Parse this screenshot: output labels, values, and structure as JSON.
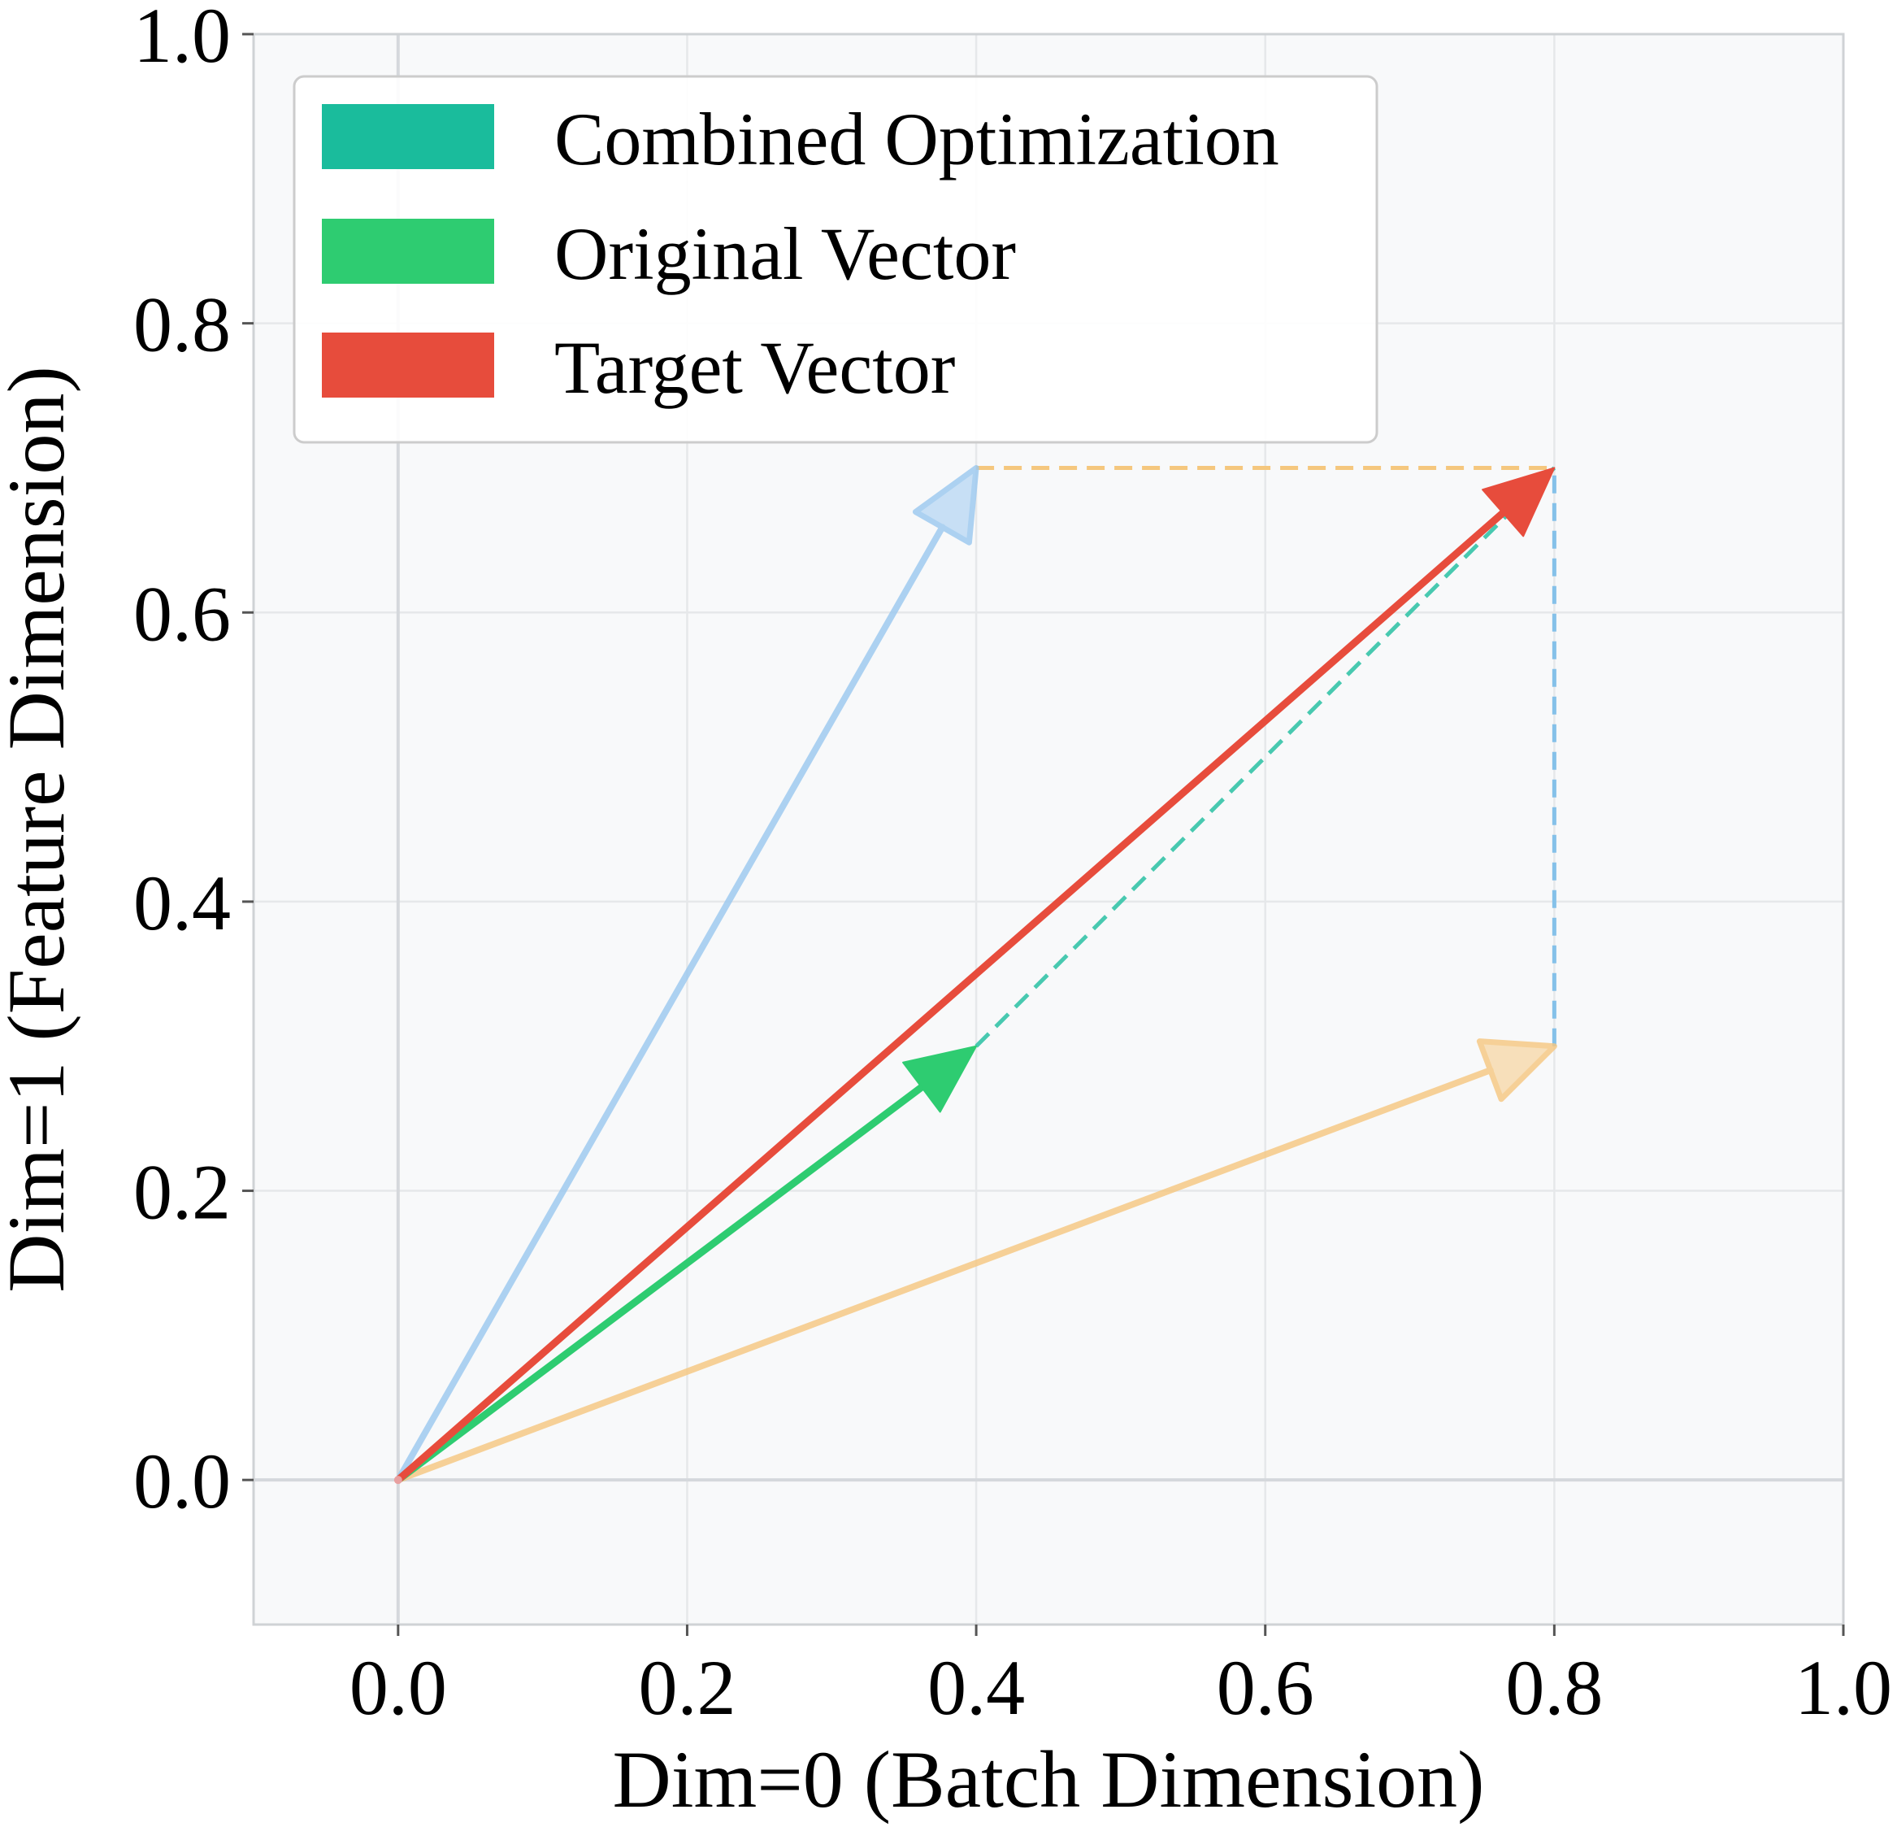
{
  "chart_data": {
    "type": "vector-diagram",
    "xlabel": "Dim=0 (Batch Dimension)",
    "ylabel": "Dim=1 (Feature Dimension)",
    "xlim": [
      -0.1,
      1.0
    ],
    "ylim": [
      -0.1,
      1.0
    ],
    "xticks": [
      0.0,
      0.2,
      0.4,
      0.6,
      0.8,
      1.0
    ],
    "yticks": [
      0.0,
      0.2,
      0.4,
      0.6,
      0.8,
      1.0
    ],
    "xtick_labels": [
      "0.0",
      "0.2",
      "0.4",
      "0.6",
      "0.8",
      "1.0"
    ],
    "ytick_labels": [
      "0.0",
      "0.2",
      "0.4",
      "0.6",
      "0.8",
      "1.0"
    ],
    "grid": true,
    "legend_position": "top-left",
    "legend": [
      {
        "label": "Combined Optimization",
        "color": "#1abc9c"
      },
      {
        "label": "Original Vector",
        "color": "#2ecc71"
      },
      {
        "label": "Target Vector",
        "color": "#e74c3c"
      }
    ],
    "vectors": [
      {
        "name": "feature-component",
        "from": [
          0,
          0
        ],
        "to": [
          0.4,
          0.7
        ],
        "color": "#9ac8ef",
        "opacity": 0.8,
        "style": "faded"
      },
      {
        "name": "batch-component",
        "from": [
          0,
          0
        ],
        "to": [
          0.8,
          0.3
        ],
        "color": "#f6c77f",
        "opacity": 0.8,
        "style": "faded"
      },
      {
        "name": "original-vector",
        "from": [
          0,
          0
        ],
        "to": [
          0.4,
          0.3
        ],
        "color": "#2ecc71",
        "opacity": 1.0,
        "style": "solid"
      },
      {
        "name": "target-vector",
        "from": [
          0,
          0
        ],
        "to": [
          0.8,
          0.7
        ],
        "color": "#e74c3c",
        "opacity": 1.0,
        "style": "solid"
      }
    ],
    "dashed_lines": [
      {
        "name": "combined-optimization-path",
        "from": [
          0.4,
          0.3
        ],
        "to": [
          0.8,
          0.7
        ],
        "color": "#48c9b0"
      },
      {
        "name": "horizontal-guide",
        "from": [
          0.4,
          0.7
        ],
        "to": [
          0.8,
          0.7
        ],
        "color": "#f5c77e"
      },
      {
        "name": "vertical-guide",
        "from": [
          0.8,
          0.3
        ],
        "to": [
          0.8,
          0.7
        ],
        "color": "#85c1e9"
      }
    ],
    "colors": {
      "plot_background": "#f8f9fa",
      "grid": "#e6e8ea",
      "zero_line": "#d5d8dc",
      "spine": "#cfd2d5"
    }
  }
}
